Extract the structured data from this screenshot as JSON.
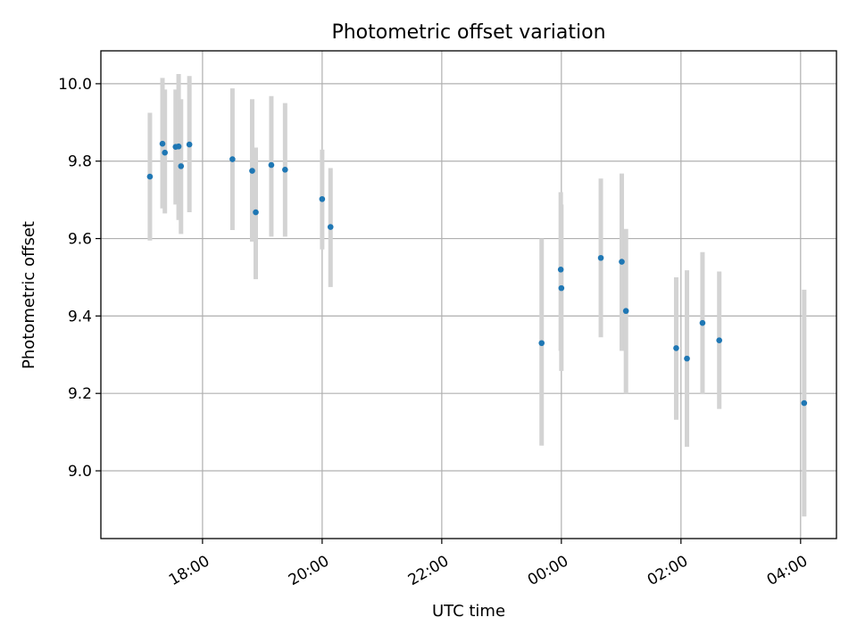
{
  "chart_data": {
    "type": "scatter",
    "title": "Photometric offset variation",
    "xlabel": "UTC time",
    "ylabel": "Photometric offset",
    "grid": true,
    "x_units": "hours since 00:00 UTC of the second day",
    "xlim": [
      -7.7,
      4.6
    ],
    "ylim": [
      8.825,
      10.085
    ],
    "xticks": [
      {
        "value": -6,
        "label": "18:00"
      },
      {
        "value": -4,
        "label": "20:00"
      },
      {
        "value": -2,
        "label": "22:00"
      },
      {
        "value": 0,
        "label": "00:00"
      },
      {
        "value": 2,
        "label": "02:00"
      },
      {
        "value": 4,
        "label": "04:00"
      }
    ],
    "yticks": [
      {
        "value": 9.0,
        "label": "9.0"
      },
      {
        "value": 9.2,
        "label": "9.2"
      },
      {
        "value": 9.4,
        "label": "9.4"
      },
      {
        "value": 9.6,
        "label": "9.6"
      },
      {
        "value": 9.8,
        "label": "9.8"
      },
      {
        "value": 10.0,
        "label": "10.0"
      }
    ],
    "series": [
      {
        "name": "offset",
        "color": "#1f77b4",
        "errorbar_color": "#d3d3d3",
        "points": [
          {
            "x": -6.88,
            "y": 9.76,
            "lo": 9.595,
            "hi": 9.925
          },
          {
            "x": -6.67,
            "y": 9.845,
            "lo": 9.678,
            "hi": 10.015
          },
          {
            "x": -6.63,
            "y": 9.822,
            "lo": 9.665,
            "hi": 9.985
          },
          {
            "x": -6.45,
            "y": 9.837,
            "lo": 9.688,
            "hi": 9.985
          },
          {
            "x": -6.4,
            "y": 9.838,
            "lo": 9.648,
            "hi": 10.025
          },
          {
            "x": -6.36,
            "y": 9.787,
            "lo": 9.612,
            "hi": 9.96
          },
          {
            "x": -6.22,
            "y": 9.843,
            "lo": 9.668,
            "hi": 10.02
          },
          {
            "x": -5.5,
            "y": 9.805,
            "lo": 9.622,
            "hi": 9.988
          },
          {
            "x": -5.17,
            "y": 9.775,
            "lo": 9.592,
            "hi": 9.96
          },
          {
            "x": -5.11,
            "y": 9.668,
            "lo": 9.495,
            "hi": 9.835
          },
          {
            "x": -4.85,
            "y": 9.79,
            "lo": 9.605,
            "hi": 9.968
          },
          {
            "x": -4.62,
            "y": 9.778,
            "lo": 9.605,
            "hi": 9.95
          },
          {
            "x": -4.0,
            "y": 9.702,
            "lo": 9.572,
            "hi": 9.83
          },
          {
            "x": -3.86,
            "y": 9.63,
            "lo": 9.475,
            "hi": 9.782
          },
          {
            "x": -0.33,
            "y": 9.33,
            "lo": 9.065,
            "hi": 9.6
          },
          {
            "x": -0.01,
            "y": 9.52,
            "lo": 9.31,
            "hi": 9.72
          },
          {
            "x": 0.0,
            "y": 9.472,
            "lo": 9.258,
            "hi": 9.688
          },
          {
            "x": 0.66,
            "y": 9.55,
            "lo": 9.345,
            "hi": 9.755
          },
          {
            "x": 1.01,
            "y": 9.54,
            "lo": 9.31,
            "hi": 9.768
          },
          {
            "x": 1.08,
            "y": 9.413,
            "lo": 9.2,
            "hi": 9.625
          },
          {
            "x": 1.92,
            "y": 9.317,
            "lo": 9.132,
            "hi": 9.5
          },
          {
            "x": 2.1,
            "y": 9.29,
            "lo": 9.062,
            "hi": 9.518
          },
          {
            "x": 2.36,
            "y": 9.382,
            "lo": 9.198,
            "hi": 9.565
          },
          {
            "x": 2.64,
            "y": 9.337,
            "lo": 9.16,
            "hi": 9.515
          },
          {
            "x": 4.06,
            "y": 9.175,
            "lo": 8.882,
            "hi": 9.468
          }
        ]
      }
    ]
  }
}
